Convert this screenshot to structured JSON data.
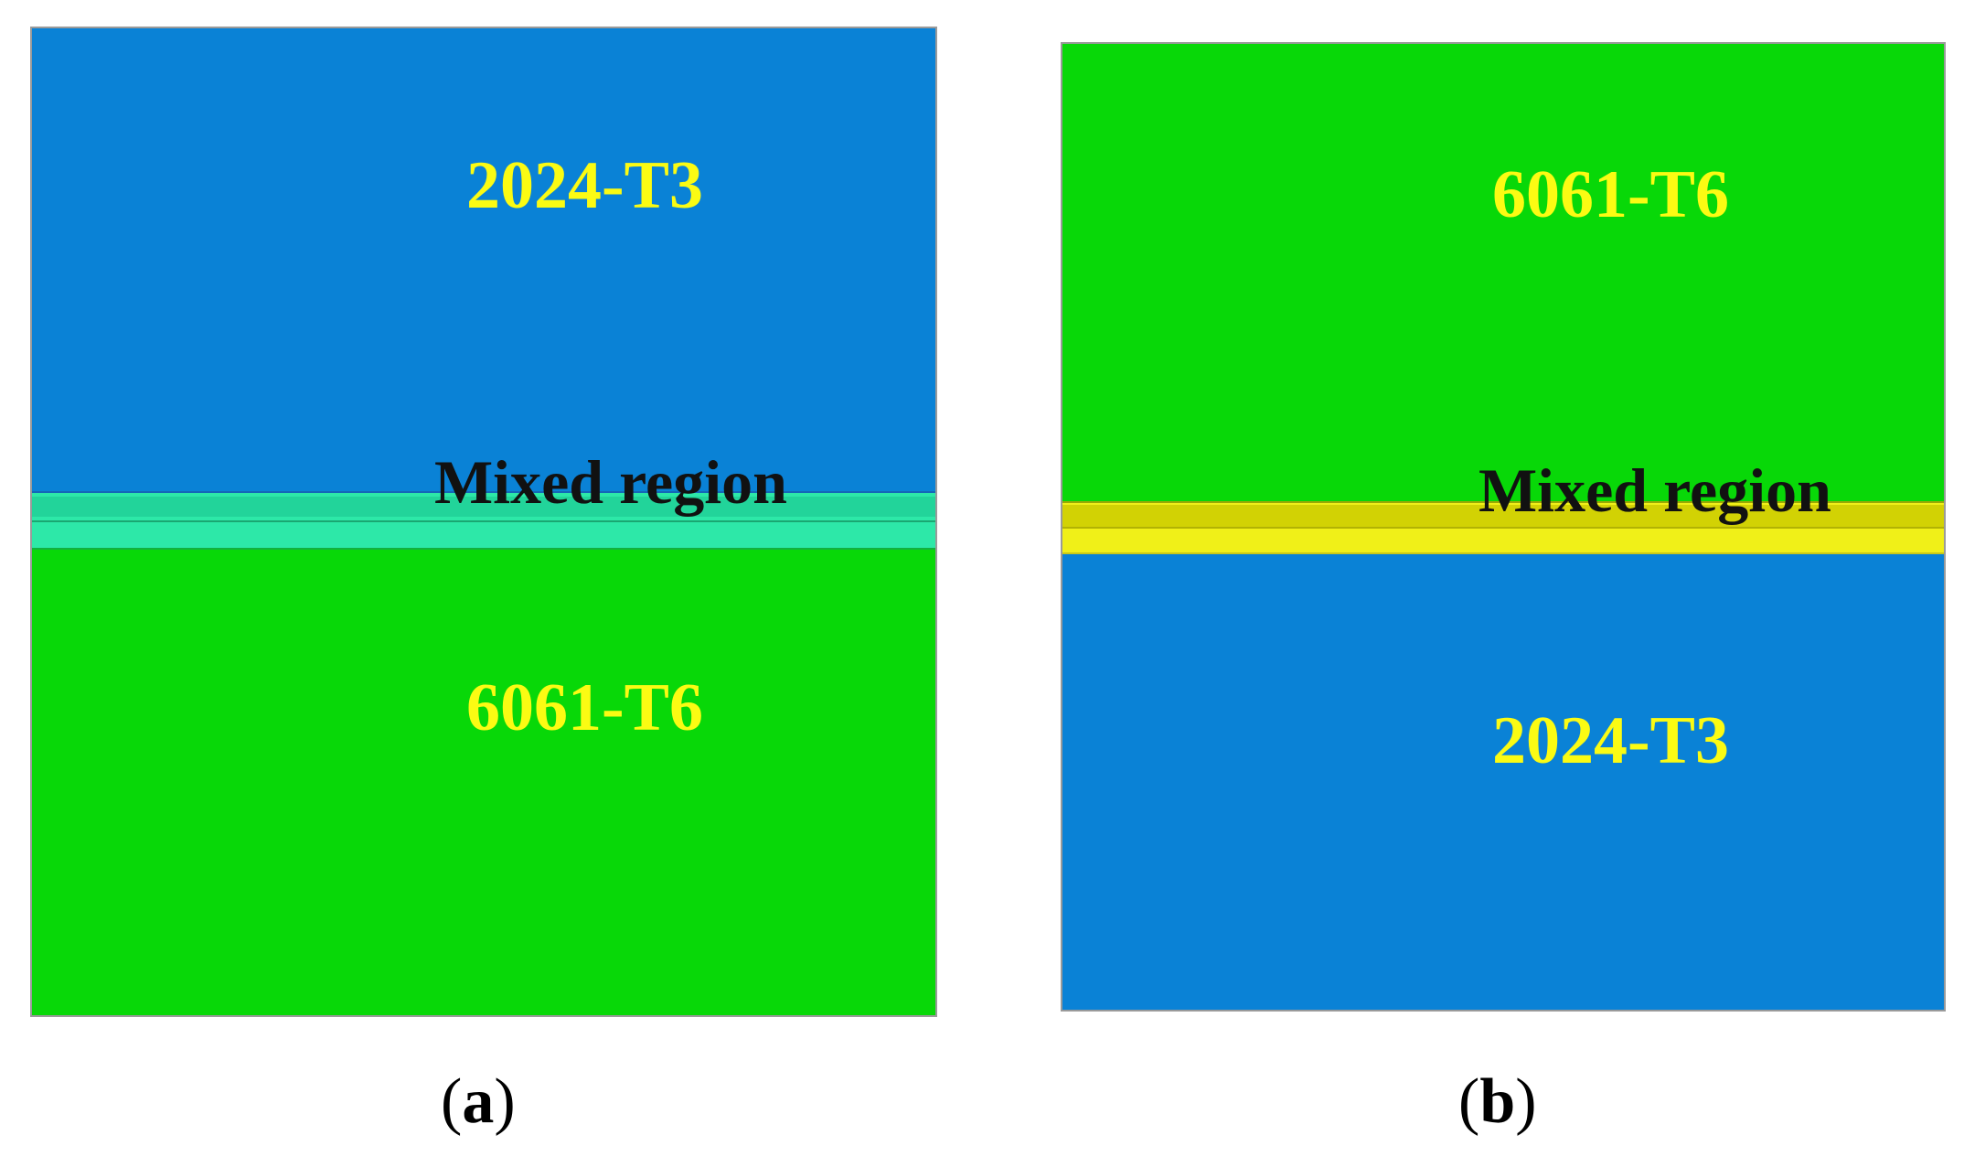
{
  "colors": {
    "alloy_2024_t3": "#0a82d6",
    "alloy_6061_t6": "#08d808",
    "mixed_a": "#28dea0",
    "mixed_b": "#dede05",
    "label_material": "#fbfb13",
    "label_mixed": "#111111"
  },
  "panel_a": {
    "top_material": "2024-T3",
    "bottom_material": "6061-T6",
    "mixed_label": "Mixed region",
    "caption": {
      "open": "(",
      "letter": "a",
      "close": ")"
    }
  },
  "panel_b": {
    "top_material": "6061-T6",
    "bottom_material": "2024-T3",
    "mixed_label": "Mixed region",
    "caption": {
      "open": "(",
      "letter": "b",
      "close": ")"
    }
  }
}
